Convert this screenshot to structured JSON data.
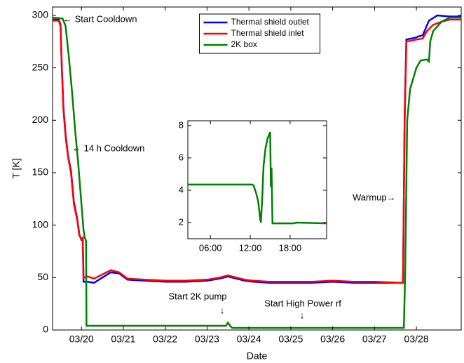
{
  "chart_data": [
    {
      "type": "line",
      "xlabel": "Date",
      "ylabel": "T [K]",
      "xlim": [
        19.31,
        29.07
      ],
      "ylim": [
        0,
        308
      ],
      "xticks": [
        {
          "value": 20,
          "label": "03/20"
        },
        {
          "value": 21,
          "label": "03/21"
        },
        {
          "value": 22,
          "label": "03/22"
        },
        {
          "value": 23,
          "label": "03/23"
        },
        {
          "value": 24,
          "label": "03/24"
        },
        {
          "value": 25,
          "label": "03/25"
        },
        {
          "value": 26,
          "label": "03/26"
        },
        {
          "value": 27,
          "label": "03/27"
        },
        {
          "value": 28,
          "label": "03/28"
        }
      ],
      "yticks": [
        0,
        50,
        100,
        150,
        200,
        250,
        300
      ],
      "legend": "top-center",
      "annotations": [
        "← Start Cooldown",
        "← 14 h Cooldown",
        "Warmup→",
        "Start 2K pump",
        "↓",
        "Start High Power rf",
        "↓"
      ],
      "series": [
        {
          "name": "Thermal shield outlet",
          "color": "#0000ff",
          "x": [
            19.31,
            19.46,
            19.5,
            19.53,
            19.57,
            19.62,
            19.68,
            19.75,
            19.82,
            19.9,
            19.95,
            20.0,
            20.03,
            20.05,
            20.15,
            20.3,
            20.5,
            20.7,
            20.9,
            21.0,
            21.1,
            21.5,
            22.0,
            22.5,
            23.0,
            23.3,
            23.5,
            23.7,
            23.9,
            24.1,
            24.5,
            25.0,
            25.5,
            26.0,
            26.5,
            27.0,
            27.6,
            27.68,
            27.72,
            27.76,
            28.0,
            28.05,
            28.15,
            28.3,
            28.5,
            28.8,
            29.07
          ],
          "values": [
            296,
            296,
            291,
            252,
            212,
            187,
            166,
            152,
            122,
            106,
            91,
            86,
            87,
            46,
            46,
            45,
            50,
            55,
            54,
            51,
            48,
            47,
            46,
            46,
            47,
            49,
            51,
            49,
            47,
            46,
            45,
            45,
            45,
            46,
            45,
            45,
            45,
            45,
            205,
            277,
            279,
            280,
            281,
            295,
            300,
            299,
            299
          ]
        },
        {
          "name": "Thermal shield inlet",
          "color": "#ff0000",
          "x": [
            19.31,
            19.46,
            19.5,
            19.53,
            19.57,
            19.62,
            19.68,
            19.75,
            19.82,
            19.9,
            19.95,
            20.0,
            20.03,
            20.05,
            20.15,
            20.3,
            20.5,
            20.7,
            20.9,
            21.0,
            21.1,
            21.5,
            22.0,
            22.5,
            23.0,
            23.3,
            23.5,
            23.7,
            23.9,
            24.1,
            24.5,
            25.0,
            25.5,
            26.0,
            26.5,
            27.0,
            27.6,
            27.68,
            27.72,
            27.76,
            28.0,
            28.15,
            28.25,
            28.4,
            28.6,
            28.8,
            29.07
          ],
          "values": [
            295,
            295,
            290,
            250,
            210,
            185,
            165,
            150,
            120,
            105,
            90,
            87,
            88,
            50,
            51,
            49,
            53,
            57,
            55,
            52,
            49,
            48,
            47,
            47,
            48,
            50,
            52,
            50,
            48,
            47,
            46,
            46,
            46,
            47,
            46,
            46,
            45,
            45,
            200,
            275,
            277,
            278,
            285,
            291,
            294,
            296,
            296
          ]
        },
        {
          "name": "2K box",
          "color": "#008000",
          "x": [
            19.31,
            19.55,
            19.62,
            19.7,
            19.78,
            19.85,
            19.92,
            20.0,
            20.05,
            20.08,
            20.11,
            20.12,
            21.0,
            22.0,
            23.0,
            23.45,
            23.5,
            23.55,
            23.6,
            24.0,
            25.0,
            26.0,
            27.0,
            27.7,
            27.73,
            27.78,
            27.85,
            28.0,
            28.1,
            28.25,
            28.3,
            28.33,
            28.4,
            28.6,
            28.8,
            29.07
          ],
          "values": [
            298,
            297,
            290,
            260,
            225,
            190,
            160,
            120,
            95,
            88,
            85,
            4,
            4,
            4,
            4,
            4,
            7,
            4,
            2,
            2,
            2,
            2,
            2,
            2,
            50,
            200,
            230,
            250,
            257,
            258,
            256,
            275,
            285,
            294,
            298,
            298
          ]
        }
      ]
    },
    {
      "type": "line",
      "xlim": [
        2.6,
        23.5
      ],
      "ylim": [
        1,
        8.3
      ],
      "xticks": [
        {
          "value": 6,
          "label": "06:00"
        },
        {
          "value": 12,
          "label": "12:00"
        },
        {
          "value": 18,
          "label": "18:00"
        }
      ],
      "yticks": [
        2,
        4,
        6,
        8
      ],
      "series": [
        {
          "color": "#008000",
          "x": [
            2.6,
            8,
            10,
            12.3,
            12.5,
            12.9,
            13.2,
            13.5,
            13.6,
            13.8,
            14.0,
            14.3,
            14.6,
            15.0,
            15.1,
            15.2,
            15.35,
            18.5,
            19,
            23.5
          ],
          "values": [
            4.35,
            4.35,
            4.35,
            4.35,
            4.3,
            3.8,
            3.3,
            2.2,
            2.0,
            3.5,
            5.5,
            6.6,
            7.2,
            7.6,
            4.2,
            5.4,
            1.95,
            1.95,
            2.0,
            1.95
          ]
        }
      ]
    }
  ]
}
